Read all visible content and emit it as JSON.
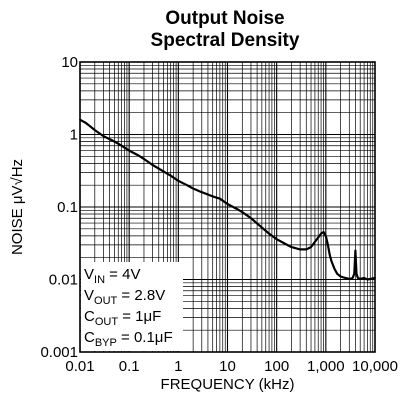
{
  "chart_data": {
    "type": "line",
    "title_line1": "Output Noise",
    "title_line2": "Spectral Density",
    "xlabel": "FREQUENCY (kHz)",
    "ylabel": "NOISE μV√Hz",
    "x_scale": "log",
    "y_scale": "log",
    "xlim": [
      0.01,
      10000
    ],
    "ylim": [
      0.001,
      10
    ],
    "x_ticks": [
      "0.01",
      "0.1",
      "1",
      "10",
      "100",
      "1,000",
      "10,000"
    ],
    "y_ticks": [
      "0.001",
      "0.01",
      "0.1",
      "1",
      "10"
    ],
    "grid": true,
    "conditions": [
      {
        "main": "V",
        "sub": "IN",
        "rest": " = 4V"
      },
      {
        "main": "V",
        "sub": "OUT",
        "rest": " = 2.8V"
      },
      {
        "main": "C",
        "sub": "OUT",
        "rest": " = 1μF"
      },
      {
        "main": "C",
        "sub": "BYP",
        "rest": " = 0.1μF"
      }
    ],
    "series": [
      {
        "x": [
          0.01,
          0.013,
          0.016,
          0.02,
          0.03,
          0.05,
          0.07,
          0.1,
          0.15,
          0.2,
          0.3,
          0.5,
          0.7,
          1,
          1.5,
          2,
          3,
          5,
          7,
          10,
          15,
          20,
          30,
          50,
          70,
          100,
          150,
          200,
          300,
          400,
          500,
          600,
          700,
          800,
          900,
          1000,
          1100,
          1200,
          1300,
          1500,
          1700,
          2000,
          2500,
          3000,
          3500,
          3800,
          4000,
          4200,
          4500,
          5000,
          6000,
          7000,
          8000,
          10000
        ],
        "y": [
          1.6,
          1.45,
          1.3,
          1.15,
          0.95,
          0.8,
          0.7,
          0.6,
          0.52,
          0.46,
          0.38,
          0.31,
          0.27,
          0.23,
          0.2,
          0.18,
          0.16,
          0.14,
          0.13,
          0.11,
          0.095,
          0.085,
          0.07,
          0.052,
          0.043,
          0.036,
          0.031,
          0.028,
          0.026,
          0.026,
          0.028,
          0.033,
          0.038,
          0.043,
          0.045,
          0.04,
          0.03,
          0.022,
          0.018,
          0.014,
          0.012,
          0.011,
          0.0105,
          0.0102,
          0.0105,
          0.012,
          0.025,
          0.012,
          0.0105,
          0.0102,
          0.0105,
          0.01,
          0.0102,
          0.0105
        ]
      }
    ]
  }
}
